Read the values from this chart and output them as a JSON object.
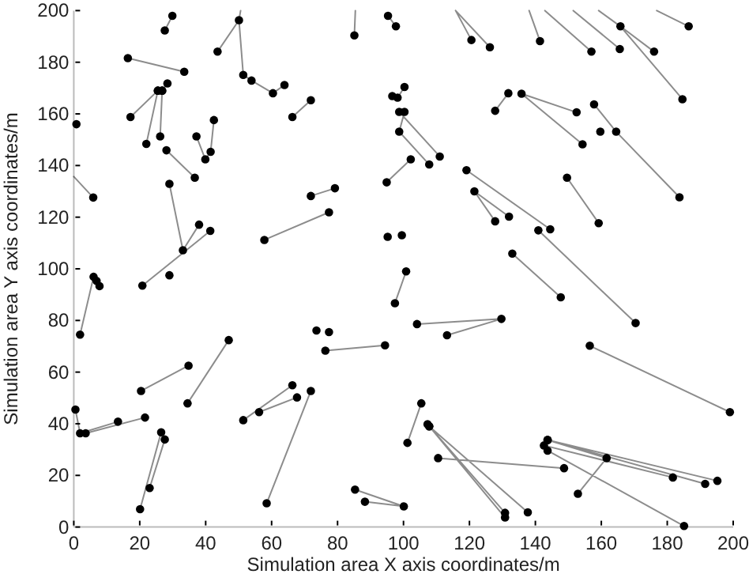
{
  "chart_data": {
    "type": "line",
    "xlabel": "Simulation area X axis coordinates/m",
    "ylabel": "Simulation area Y axis coordinates/m",
    "xlim": [
      0,
      200
    ],
    "ylim": [
      0,
      200
    ],
    "xticks": [
      0,
      20,
      40,
      60,
      80,
      100,
      120,
      140,
      160,
      180,
      200
    ],
    "yticks": [
      0,
      20,
      40,
      60,
      80,
      100,
      120,
      140,
      160,
      180,
      200
    ],
    "series": [
      {
        "color": "#000000",
        "marker": "circle",
        "x": [
          16.4,
          33.5,
          null,
          27.6,
          29.9,
          null,
          43.6,
          50.1,
          51.4,
          53.9,
          60.4,
          63.9,
          null,
          17.2,
          25.5,
          26.8,
          28.4,
          null,
          22,
          25.5,
          null,
          26.2,
          26.8,
          null,
          28.1,
          36.7,
          null,
          37.2,
          39.9,
          41.5,
          42.5,
          null,
          29,
          33.1,
          38,
          null,
          41.4,
          20.8,
          null,
          29,
          null,
          5.9,
          null,
          0.8,
          null,
          57.8,
          77.4,
          null,
          1.9,
          6,
          6.9,
          7.8,
          null,
          0.5,
          1.9,
          13.4,
          null,
          3.6,
          21.6,
          null,
          20.4,
          34.8,
          null,
          34.5,
          47,
          null,
          26.5,
          20.1,
          null,
          27.6,
          23,
          null,
          51.4,
          66.3,
          null,
          56.2,
          67.7,
          null,
          71.9,
          58.5,
          null,
          73.6,
          null,
          77.4,
          null,
          76.3,
          94.4,
          null,
          97.4,
          100.8,
          null,
          104.1,
          129.7,
          113.2,
          null,
          105.4,
          101.2,
          null,
          107.3,
          130.8,
          null,
          107.8,
          130.8,
          null,
          107.8,
          137.7,
          null,
          110.5,
          148.7,
          null,
          85.3,
          100.1,
          88.3,
          null,
          143.7,
          195.2,
          null,
          143.7,
          191.5,
          null,
          142.6,
          181.7,
          null,
          143.7,
          185.1,
          null,
          143.7,
          161.6,
          152.9,
          null,
          156.5,
          199,
          null,
          157.8,
          164.5,
          183.7,
          null,
          159.7,
          null,
          149.6,
          159.2,
          null,
          140.9,
          170.4,
          null,
          133,
          147.7,
          null,
          119.1,
          144.5,
          null,
          127.8,
          121.5,
          132,
          null,
          127.8,
          131.8,
          null,
          152.5,
          135.8,
          154.3,
          null,
          141.4,
          null,
          157,
          null,
          165.6,
          null,
          176,
          165.8,
          184.6,
          null,
          186.5,
          null,
          120.6,
          null,
          126.2,
          null,
          85.1,
          null,
          95.3,
          97.7,
          null,
          71.9,
          66.3,
          null,
          96.6,
          98.2,
          100.3,
          null,
          100.3,
          98.7,
          107.8,
          null,
          98.7,
          111,
          null,
          94.9,
          102.2,
          null,
          71.9,
          79.2,
          null,
          95.2,
          null,
          99.5
        ],
        "values": [
          181.6,
          176.3,
          null,
          192.3,
          198,
          null,
          184.1,
          196.3,
          175.1,
          172.9,
          168,
          171.2,
          null,
          158.8,
          169,
          169,
          171.8,
          null,
          148.4,
          169,
          null,
          151.3,
          169,
          null,
          145.9,
          135.3,
          null,
          151.3,
          142.4,
          145.3,
          157.6,
          null,
          132.9,
          107.2,
          117.1,
          null,
          114.7,
          93.5,
          null,
          97.5,
          null,
          127.6,
          null,
          156,
          null,
          111.2,
          121.9,
          null,
          74.5,
          96.9,
          95.3,
          93.3,
          null,
          45.5,
          36.3,
          40.8,
          null,
          36.3,
          42.4,
          null,
          52.7,
          62.5,
          null,
          47.9,
          72.4,
          null,
          36.7,
          6.9,
          null,
          33.9,
          15.1,
          null,
          41.4,
          54.9,
          null,
          44.5,
          50.2,
          null,
          52.7,
          9.2,
          null,
          76.1,
          null,
          75.5,
          null,
          68.3,
          70.4,
          null,
          86.7,
          99,
          null,
          78.6,
          80.6,
          74.3,
          null,
          47.9,
          32.6,
          null,
          39.8,
          5.5,
          null,
          39,
          3.7,
          null,
          39,
          5.7,
          null,
          26.7,
          22.8,
          null,
          14.5,
          8,
          9.8,
          null,
          33.7,
          17.9,
          null,
          33.7,
          16.7,
          null,
          31.6,
          19.2,
          null,
          29.6,
          0.4,
          null,
          33.7,
          26.7,
          12.9,
          null,
          70.2,
          44.5,
          null,
          163.7,
          153.1,
          127.7,
          null,
          153.1,
          null,
          135.3,
          117.7,
          null,
          114.9,
          79,
          null,
          105.9,
          89,
          null,
          138.2,
          115.3,
          null,
          118.4,
          130,
          120.2,
          null,
          161.2,
          168,
          null,
          160.6,
          167.8,
          148.2,
          null,
          188.2,
          null,
          184.1,
          null,
          185.1,
          null,
          184.1,
          193.9,
          165.7,
          null,
          193.9,
          null,
          188.6,
          null,
          185.8,
          null,
          190.4,
          null,
          198,
          193.9,
          null,
          165.3,
          158.8,
          null,
          166.9,
          166.3,
          170.4,
          null,
          160.8,
          153.1,
          140.4,
          null,
          160.8,
          143.5,
          null,
          133.5,
          142.4,
          null,
          128.2,
          131.2,
          null,
          112.4,
          null,
          113
        ]
      },
      {
        "color": "#000000",
        "marker": "none",
        "x": [
          0,
          5.9,
          null,
          138.1,
          141.4,
          null,
          142.9,
          157,
          null,
          151.5,
          165.6,
          null,
          159.2,
          165.8,
          null,
          176.8,
          186.5,
          null,
          115.8,
          120.6,
          null,
          115.8,
          126.2,
          null,
          85.4,
          85.1,
          null,
          50.1,
          50.6
        ],
        "values": [
          135.7,
          127.6,
          null,
          200,
          188.2,
          null,
          200,
          184.1,
          null,
          200,
          185.1,
          null,
          200,
          193.9,
          null,
          200,
          193.9,
          null,
          200,
          188.6,
          null,
          200,
          185.8,
          null,
          200,
          190.4,
          null,
          196.3,
          200
        ]
      }
    ]
  }
}
